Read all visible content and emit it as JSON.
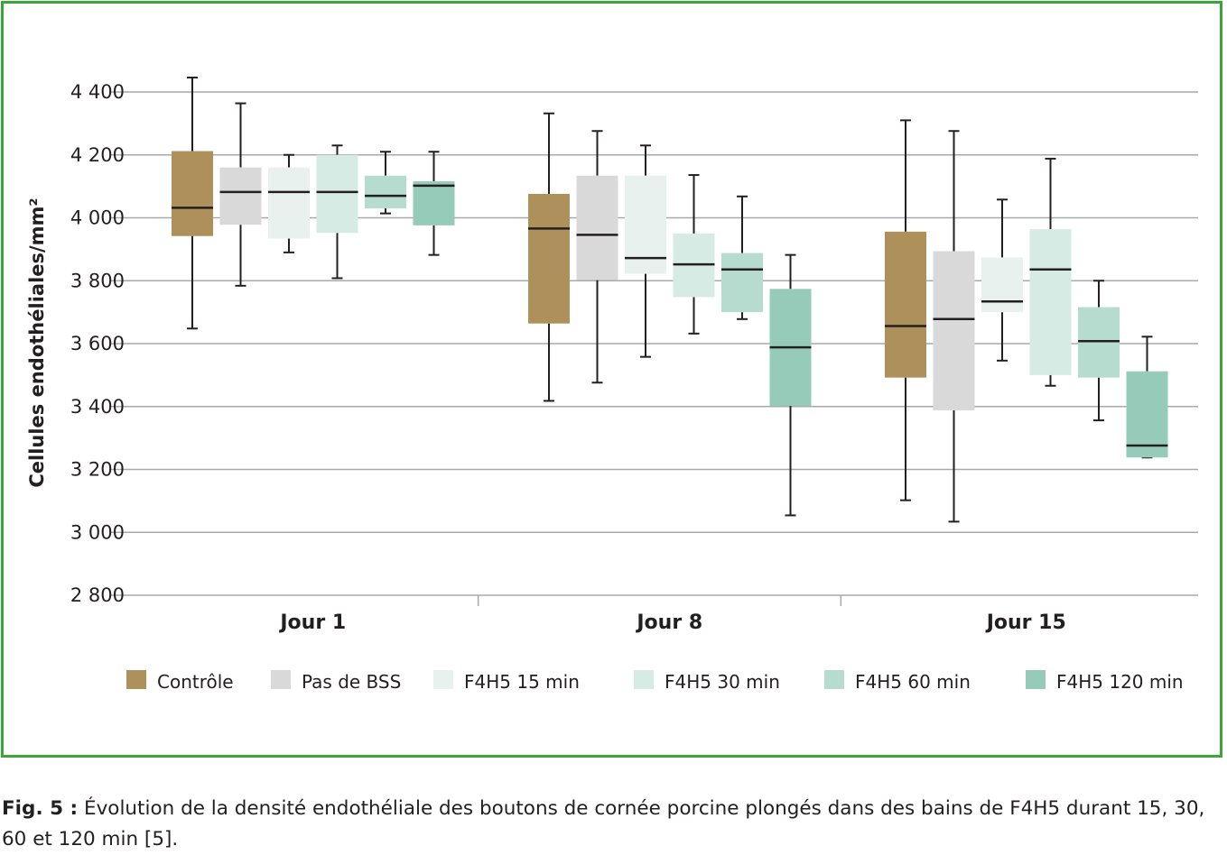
{
  "caption": {
    "label": "Fig. 5 :",
    "text": "Évolution de la densité endothéliale des boutons de cornée porcine plongés dans des bains de F4H5 durant 15, 30, 60 et 120 min [5]."
  },
  "colors": {
    "frame": "#3aa63a",
    "grid": "#a7a9ac",
    "series": [
      "#ad905a",
      "#d9d9d9",
      "#e9f1ee",
      "#d6ebe3",
      "#b6dccf",
      "#97cbb9"
    ]
  },
  "chart_data": {
    "type": "boxplot",
    "ylabel": "Cellules endothéliales/mm²",
    "xlabel": "",
    "ylim": [
      2800,
      4400
    ],
    "yticks": [
      2800,
      3000,
      3200,
      3400,
      3600,
      3800,
      4000,
      4200,
      4400
    ],
    "ytick_labels": [
      "2 800",
      "3 000",
      "3 200",
      "3 400",
      "3 600",
      "3 800",
      "4 000",
      "4 200",
      "4 400"
    ],
    "grid": true,
    "legend_position": "bottom",
    "categories": [
      "Jour 1",
      "Jour 8",
      "Jour 15"
    ],
    "series": [
      {
        "name": "Contrôle",
        "boxes": [
          {
            "min": 3648,
            "q1": 3942,
            "median": 4032,
            "q3": 4212,
            "max": 4446
          },
          {
            "min": 3418,
            "q1": 3664,
            "median": 3966,
            "q3": 4076,
            "max": 4332
          },
          {
            "min": 3102,
            "q1": 3492,
            "median": 3656,
            "q3": 3956,
            "max": 4310
          }
        ]
      },
      {
        "name": "Pas de BSS",
        "boxes": [
          {
            "min": 3784,
            "q1": 3978,
            "median": 4082,
            "q3": 4160,
            "max": 4364
          },
          {
            "min": 3476,
            "q1": 3802,
            "median": 3946,
            "q3": 4134,
            "max": 4276
          },
          {
            "min": 3034,
            "q1": 3388,
            "median": 3678,
            "q3": 3894,
            "max": 4276
          }
        ]
      },
      {
        "name": "F4H5 15 min",
        "boxes": [
          {
            "min": 3890,
            "q1": 3934,
            "median": 4082,
            "q3": 4160,
            "max": 4200
          },
          {
            "min": 3558,
            "q1": 3822,
            "median": 3872,
            "q3": 4134,
            "max": 4230
          },
          {
            "min": 3546,
            "q1": 3700,
            "median": 3734,
            "q3": 3874,
            "max": 4058
          }
        ]
      },
      {
        "name": "F4H5 30 min",
        "boxes": [
          {
            "min": 3808,
            "q1": 3952,
            "median": 4082,
            "q3": 4200,
            "max": 4230
          },
          {
            "min": 3632,
            "q1": 3748,
            "median": 3852,
            "q3": 3950,
            "max": 4136
          },
          {
            "min": 3466,
            "q1": 3500,
            "median": 3836,
            "q3": 3964,
            "max": 4188
          }
        ]
      },
      {
        "name": "F4H5 60 min",
        "boxes": [
          {
            "min": 4014,
            "q1": 4030,
            "median": 4070,
            "q3": 4134,
            "max": 4210
          },
          {
            "min": 3678,
            "q1": 3700,
            "median": 3836,
            "q3": 3888,
            "max": 4068
          },
          {
            "min": 3356,
            "q1": 3492,
            "median": 3608,
            "q3": 3716,
            "max": 3800
          }
        ]
      },
      {
        "name": "F4H5 120 min",
        "boxes": [
          {
            "min": 3882,
            "q1": 3976,
            "median": 4102,
            "q3": 4116,
            "max": 4210
          },
          {
            "min": 3054,
            "q1": 3402,
            "median": 3588,
            "q3": 3774,
            "max": 3882
          },
          {
            "min": 3238,
            "q1": 3238,
            "median": 3276,
            "q3": 3512,
            "max": 3622
          }
        ]
      }
    ]
  }
}
